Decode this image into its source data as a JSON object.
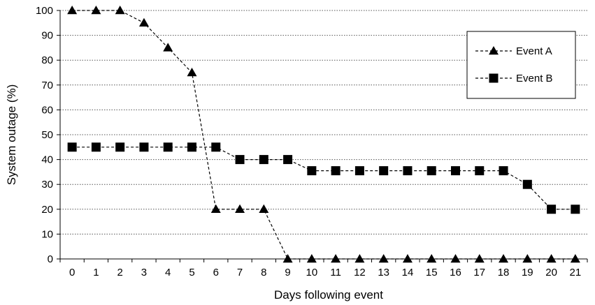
{
  "chart_data": {
    "type": "line",
    "xlabel": "Days following event",
    "ylabel": "System outage (%)",
    "x": [
      0,
      1,
      2,
      3,
      4,
      5,
      6,
      7,
      8,
      9,
      10,
      11,
      12,
      13,
      14,
      15,
      16,
      17,
      18,
      19,
      20,
      21
    ],
    "x_tick_labels": [
      "0",
      "1",
      "2",
      "3",
      "4",
      "5",
      "6",
      "7",
      "8",
      "9",
      "10",
      "11",
      "12",
      "13",
      "14",
      "15",
      "16",
      "17",
      "18",
      "19",
      "20",
      "21"
    ],
    "y_tick_labels": [
      "0",
      "10",
      "20",
      "30",
      "40",
      "50",
      "60",
      "70",
      "80",
      "90",
      "100"
    ],
    "ylim": [
      0,
      100
    ],
    "ystep": 10,
    "grid": "horizontal dotted",
    "legend_position": "top-right",
    "series": [
      {
        "name": "Event A",
        "marker": "triangle",
        "line_style": "dashed",
        "color": "#000000",
        "values": [
          100,
          100,
          100,
          95,
          85,
          75,
          20,
          20,
          20,
          0,
          0,
          0,
          0,
          0,
          0,
          0,
          0,
          0,
          0,
          0,
          0,
          0
        ]
      },
      {
        "name": "Event B",
        "marker": "square",
        "line_style": "dashed",
        "color": "#000000",
        "values": [
          45,
          45,
          45,
          45,
          45,
          45,
          45,
          40,
          40,
          40,
          35.5,
          35.5,
          35.5,
          35.5,
          35.5,
          35.5,
          35.5,
          35.5,
          35.5,
          30,
          20,
          20
        ]
      }
    ]
  }
}
